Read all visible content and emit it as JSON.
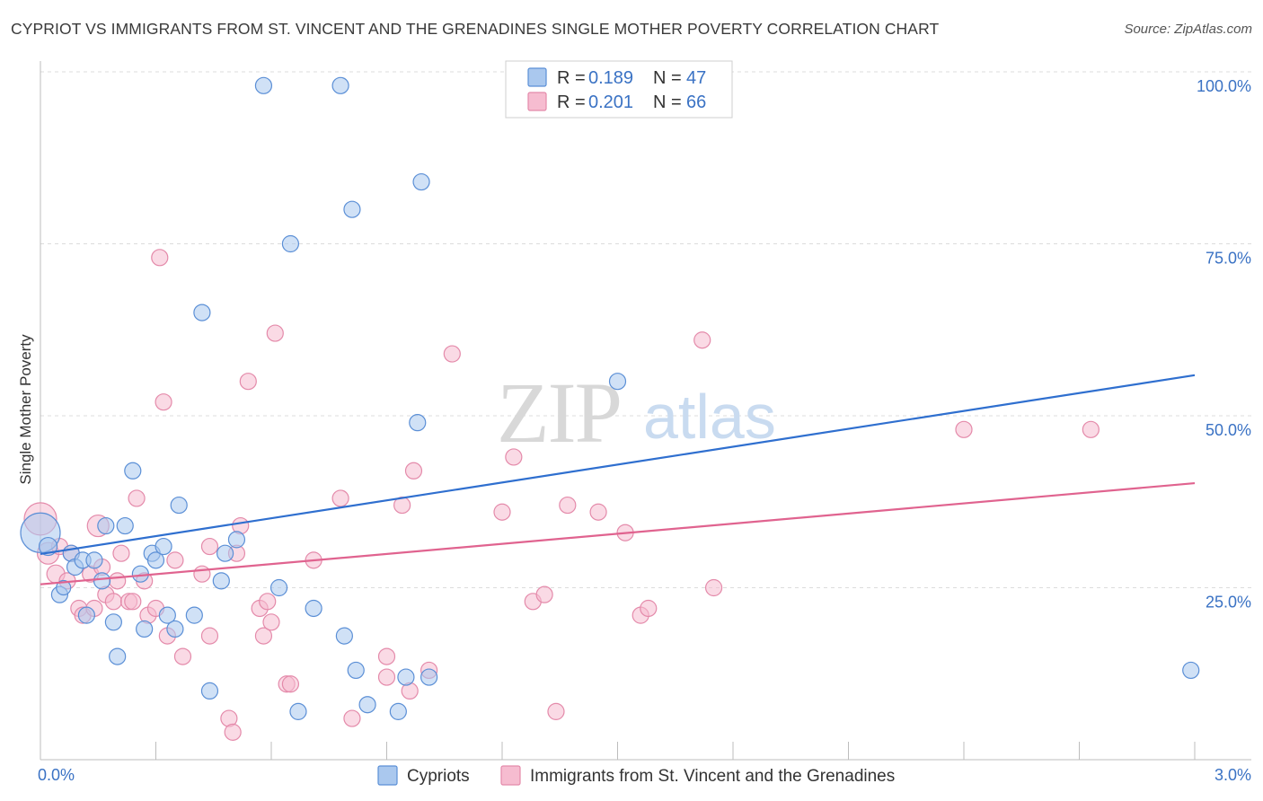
{
  "title": "CYPRIOT VS IMMIGRANTS FROM ST. VINCENT AND THE GRENADINES SINGLE MOTHER POVERTY CORRELATION CHART",
  "source": "Source: ZipAtlas.com",
  "watermark": {
    "zip": "ZIP",
    "atlas": "atlas"
  },
  "colors": {
    "blue_fill": "#aac8ee",
    "blue_stroke": "#5b8fd6",
    "blue_line": "#2f6fcf",
    "pink_fill": "#f6bcd0",
    "pink_stroke": "#e48aaa",
    "pink_line": "#e0638f",
    "tick_text": "#3a72c4",
    "grid": "#dcdcdc"
  },
  "legend": {
    "rows": [
      {
        "r_label": "R = ",
        "r_value": "0.189",
        "n_label": "N = ",
        "n_value": "47"
      },
      {
        "r_label": "R = ",
        "r_value": "0.201",
        "n_label": "N = ",
        "n_value": "66"
      }
    ]
  },
  "chart_data": {
    "type": "scatter",
    "title": "CYPRIOT VS IMMIGRANTS FROM ST. VINCENT AND THE GRENADINES SINGLE MOTHER POVERTY CORRELATION CHART",
    "xlabel": "",
    "ylabel": "Single Mother Poverty",
    "xlim": [
      0,
      3.0
    ],
    "ylim": [
      0,
      100
    ],
    "x_tick_labels": [
      "0.0%",
      "3.0%"
    ],
    "y_ticks": [
      25,
      50,
      75,
      100
    ],
    "y_tick_labels": [
      "25.0%",
      "50.0%",
      "75.0%",
      "100.0%"
    ],
    "grid": true,
    "legend_position": "top-center",
    "series": [
      {
        "name": "Cypriots",
        "color": "#aac8ee",
        "r": 0.189,
        "n": 47,
        "trend": {
          "x": [
            0,
            3.0
          ],
          "y": [
            29.9,
            55.9
          ]
        },
        "points": [
          [
            0.0,
            33.0,
            22
          ],
          [
            0.02,
            31.0,
            10
          ],
          [
            0.05,
            24.0,
            9
          ],
          [
            0.06,
            25.0,
            8
          ],
          [
            0.08,
            30.0,
            9
          ],
          [
            0.09,
            28.0,
            9
          ],
          [
            0.11,
            29.0,
            9
          ],
          [
            0.12,
            21.0,
            9
          ],
          [
            0.14,
            29.0,
            9
          ],
          [
            0.16,
            26.0,
            9
          ],
          [
            0.17,
            34.0,
            9
          ],
          [
            0.19,
            20.0,
            9
          ],
          [
            0.2,
            15.0,
            9
          ],
          [
            0.22,
            34.0,
            9
          ],
          [
            0.24,
            42.0,
            9
          ],
          [
            0.26,
            27.0,
            9
          ],
          [
            0.27,
            19.0,
            9
          ],
          [
            0.29,
            30.0,
            9
          ],
          [
            0.3,
            29.0,
            9
          ],
          [
            0.32,
            31.0,
            9
          ],
          [
            0.33,
            21.0,
            9
          ],
          [
            0.36,
            37.0,
            9
          ],
          [
            0.35,
            19.0,
            9
          ],
          [
            0.4,
            21.0,
            9
          ],
          [
            0.42,
            65.0,
            9
          ],
          [
            0.44,
            10.0,
            9
          ],
          [
            0.47,
            26.0,
            9
          ],
          [
            0.48,
            30.0,
            9
          ],
          [
            0.51,
            32.0,
            9
          ],
          [
            0.58,
            98.0,
            9
          ],
          [
            0.62,
            25.0,
            9
          ],
          [
            0.65,
            75.0,
            9
          ],
          [
            0.67,
            7.0,
            9
          ],
          [
            0.71,
            22.0,
            9
          ],
          [
            0.78,
            98.0,
            9
          ],
          [
            0.79,
            18.0,
            9
          ],
          [
            0.81,
            80.0,
            9
          ],
          [
            0.82,
            13.0,
            9
          ],
          [
            0.85,
            8.0,
            9
          ],
          [
            0.93,
            7.0,
            9
          ],
          [
            0.95,
            12.0,
            9
          ],
          [
            0.98,
            49.0,
            9
          ],
          [
            0.99,
            84.0,
            9
          ],
          [
            1.01,
            12.0,
            9
          ],
          [
            1.5,
            55.0,
            9
          ],
          [
            1.7,
            98.0,
            9
          ],
          [
            2.99,
            13.0,
            9
          ]
        ]
      },
      {
        "name": "Immigrants from St. Vincent and the Grenadines",
        "color": "#f6bcd0",
        "r": 0.201,
        "n": 66,
        "trend": {
          "x": [
            0,
            3.0
          ],
          "y": [
            25.5,
            40.2
          ]
        },
        "points": [
          [
            0.0,
            35.0,
            18
          ],
          [
            0.02,
            30.0,
            12
          ],
          [
            0.04,
            27.0,
            10
          ],
          [
            0.05,
            31.0,
            9
          ],
          [
            0.07,
            26.0,
            9
          ],
          [
            0.08,
            30.0,
            9
          ],
          [
            0.1,
            22.0,
            9
          ],
          [
            0.11,
            21.0,
            9
          ],
          [
            0.13,
            27.0,
            9
          ],
          [
            0.14,
            22.0,
            9
          ],
          [
            0.15,
            34.0,
            12
          ],
          [
            0.16,
            28.0,
            9
          ],
          [
            0.17,
            24.0,
            9
          ],
          [
            0.19,
            23.0,
            9
          ],
          [
            0.2,
            26.0,
            9
          ],
          [
            0.21,
            30.0,
            9
          ],
          [
            0.23,
            23.0,
            9
          ],
          [
            0.24,
            23.0,
            9
          ],
          [
            0.25,
            38.0,
            9
          ],
          [
            0.27,
            26.0,
            9
          ],
          [
            0.28,
            21.0,
            9
          ],
          [
            0.3,
            22.0,
            9
          ],
          [
            0.31,
            73.0,
            9
          ],
          [
            0.32,
            52.0,
            9
          ],
          [
            0.33,
            18.0,
            9
          ],
          [
            0.35,
            29.0,
            9
          ],
          [
            0.37,
            15.0,
            9
          ],
          [
            0.42,
            27.0,
            9
          ],
          [
            0.44,
            31.0,
            9
          ],
          [
            0.44,
            18.0,
            9
          ],
          [
            0.49,
            6.0,
            9
          ],
          [
            0.5,
            4.0,
            9
          ],
          [
            0.51,
            30.0,
            9
          ],
          [
            0.52,
            34.0,
            9
          ],
          [
            0.54,
            55.0,
            9
          ],
          [
            0.57,
            22.0,
            9
          ],
          [
            0.58,
            18.0,
            9
          ],
          [
            0.59,
            23.0,
            9
          ],
          [
            0.6,
            20.0,
            9
          ],
          [
            0.61,
            62.0,
            9
          ],
          [
            0.64,
            11.0,
            9
          ],
          [
            0.65,
            11.0,
            9
          ],
          [
            0.71,
            29.0,
            9
          ],
          [
            0.78,
            38.0,
            9
          ],
          [
            0.81,
            6.0,
            9
          ],
          [
            0.9,
            12.0,
            9
          ],
          [
            0.9,
            15.0,
            9
          ],
          [
            0.94,
            37.0,
            9
          ],
          [
            0.96,
            10.0,
            9
          ],
          [
            0.97,
            42.0,
            9
          ],
          [
            1.01,
            13.0,
            9
          ],
          [
            1.07,
            59.0,
            9
          ],
          [
            1.2,
            36.0,
            9
          ],
          [
            1.23,
            44.0,
            9
          ],
          [
            1.28,
            23.0,
            9
          ],
          [
            1.31,
            24.0,
            9
          ],
          [
            1.34,
            7.0,
            9
          ],
          [
            1.37,
            37.0,
            9
          ],
          [
            1.45,
            36.0,
            9
          ],
          [
            1.52,
            33.0,
            9
          ],
          [
            1.56,
            21.0,
            9
          ],
          [
            1.58,
            22.0,
            9
          ],
          [
            1.72,
            61.0,
            9
          ],
          [
            1.75,
            25.0,
            9
          ],
          [
            2.4,
            48.0,
            9
          ],
          [
            2.73,
            48.0,
            9
          ]
        ]
      }
    ]
  }
}
